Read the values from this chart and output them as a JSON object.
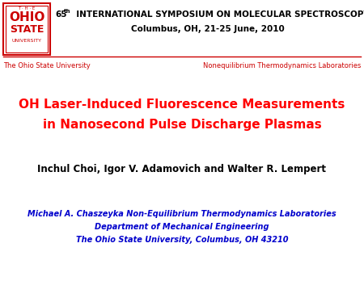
{
  "bg_color": "#ffffff",
  "header_color": "#000000",
  "header_line2": "Columbus, OH, 21-25 June, 2010",
  "separator_color": "#cc0000",
  "left_subheader": "The Ohio State University",
  "right_subheader": "Nonequilibrium Thermodynamics Laboratories",
  "subheader_color": "#cc0000",
  "title_line1": "OH Laser-Induced Fluorescence Measurements",
  "title_line2": "in Nanosecond Pulse Discharge Plasmas",
  "title_color": "#ff0000",
  "author_line": "Inchul Choi, Igor V. Adamovich and Walter R. Lempert",
  "author_color": "#000000",
  "affil_line1": "Michael A. Chaszeyka Non-Equilibrium Thermodynamics Laboratories",
  "affil_line2": "Department of Mechanical Engineering",
  "affil_line3": "The Ohio State University, Columbus, OH 43210",
  "affil_color": "#0000cc",
  "logo_box_color": "#cc0000",
  "logo_text_THE": "T · H · E",
  "logo_text_OHIO": "OHIO",
  "logo_text_STATE": "STATE",
  "logo_text_UNIV": "UNIVERSITY"
}
